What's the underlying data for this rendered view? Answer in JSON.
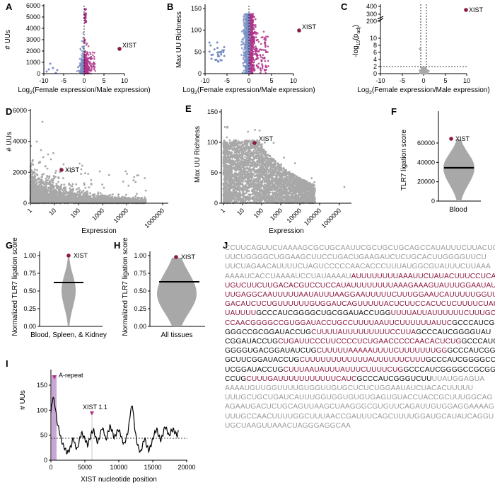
{
  "panels": {
    "A": {
      "letter": "A",
      "ylabel": "# UUs",
      "xlabel_pre": "Log",
      "xlabel_sub": "2",
      "xlabel_post": "(Female expression/Male expression)",
      "yticks": [
        "0",
        "1000",
        "2000",
        "3000",
        "4000",
        "5000",
        "6000"
      ],
      "xticks": [
        "-10",
        "-5",
        "0",
        "5",
        "10"
      ],
      "point_label": "XIST"
    },
    "B": {
      "letter": "B",
      "ylabel": "Max UU Richness",
      "xlabel_pre": "Log",
      "xlabel_sub": "2",
      "xlabel_post": "(Female expression/Male expression)",
      "yticks": [
        "0",
        "50",
        "100",
        "150"
      ],
      "xticks": [
        "-10",
        "-5",
        "0",
        "5",
        "10"
      ],
      "point_label": "XIST"
    },
    "C": {
      "letter": "C",
      "ylabel_pre": "-log",
      "ylabel_sub": "10",
      "ylabel_post": "(p",
      "ylabel_sub2": "adj",
      "ylabel_end": ")",
      "xlabel_pre": "Log",
      "xlabel_sub": "2",
      "xlabel_post": "(Female expression/Male expression)",
      "yticks": [
        "0",
        "2",
        "4",
        "6",
        "8",
        "10",
        "200",
        "300",
        "400"
      ],
      "xticks": [
        "-10",
        "-5",
        "0",
        "5",
        "10"
      ],
      "point_label": "XIST"
    },
    "D": {
      "letter": "D",
      "ylabel": "# UUs",
      "xlabel": "Expression",
      "yticks": [
        "0",
        "2000",
        "4000",
        "6000"
      ],
      "xticks": [
        "1",
        "10",
        "100",
        "1000",
        "10000",
        "1000000"
      ],
      "point_label": "XIST"
    },
    "E": {
      "letter": "E",
      "ylabel": "Max UU Richness",
      "xlabel": "Expression",
      "yticks": [
        "0",
        "50",
        "100",
        "150"
      ],
      "xticks": [
        "1",
        "10",
        "100",
        "1000",
        "10000",
        "100000",
        "1000000"
      ],
      "point_label": "XIST"
    },
    "F": {
      "letter": "F",
      "ylabel": "TLR7 ligation score",
      "xlabel": "Blood",
      "yticks": [
        "0",
        "20000",
        "40000",
        "60000"
      ],
      "point_label": "XIST"
    },
    "G": {
      "letter": "G",
      "ylabel": "Normalized TLR7 ligation score",
      "xlabel": "Blood, Spleen, & Kidney",
      "yticks": [
        "0.00",
        "0.25",
        "0.50",
        "0.75",
        "1.00"
      ],
      "point_label": "XIST"
    },
    "H": {
      "letter": "H",
      "ylabel": "Normalized TLR7 ligation score",
      "xlabel": "All tissues",
      "yticks": [
        "0.00",
        "0.25",
        "0.50",
        "0.75",
        "1.00"
      ],
      "point_label": "XIST"
    },
    "I": {
      "letter": "I",
      "ylabel": "# UUs",
      "xlabel": "XIST nucleotide position",
      "yticks": [
        "0",
        "50",
        "100",
        "150"
      ],
      "xticks": [
        "0",
        "5000",
        "10000",
        "15000",
        "20000"
      ],
      "annot1": "A-repeat",
      "annot2": "XIST 1.1"
    },
    "J": {
      "letter": "J"
    }
  },
  "colors": {
    "female": "#b0338a",
    "male": "#7a8fc4",
    "xist": "#8b1a3c",
    "gray": "#a8a8a8",
    "purple_fill": "#c9a6d6"
  },
  "chart_data": [
    {
      "panel": "A",
      "type": "scatter",
      "xlabel": "Log2(Female expression/Male expression)",
      "ylabel": "# UUs",
      "xlim": [
        -10,
        10
      ],
      "ylim": [
        0,
        6000
      ],
      "labeled_points": [
        {
          "label": "XIST",
          "x": 8.8,
          "y": 2150
        }
      ]
    },
    {
      "panel": "B",
      "type": "scatter",
      "xlabel": "Log2(Female expression/Male expression)",
      "ylabel": "Max UU Richness",
      "xlim": [
        -10,
        10
      ],
      "ylim": [
        0,
        150
      ],
      "labeled_points": [
        {
          "label": "XIST",
          "x": 8.8,
          "y": 128
        }
      ]
    },
    {
      "panel": "C",
      "type": "scatter",
      "xlabel": "Log2(Female expression/Male expression)",
      "ylabel": "-log10(padj)",
      "xlim": [
        -10,
        10
      ],
      "ylim": [
        0,
        400
      ],
      "labeled_points": [
        {
          "label": "XIST",
          "x": 8.8,
          "y": 330
        }
      ]
    },
    {
      "panel": "D",
      "type": "scatter",
      "xlabel": "Expression",
      "ylabel": "# UUs",
      "xscale": "log",
      "ylim": [
        0,
        6000
      ],
      "labeled_points": [
        {
          "label": "XIST",
          "x": 25,
          "y": 2150
        }
      ]
    },
    {
      "panel": "E",
      "type": "scatter",
      "xlabel": "Expression",
      "ylabel": "Max UU Richness",
      "xscale": "log",
      "ylim": [
        0,
        150
      ],
      "labeled_points": [
        {
          "label": "XIST",
          "x": 25,
          "y": 128
        }
      ]
    },
    {
      "panel": "F",
      "type": "violin",
      "ylabel": "TLR7 ligation score",
      "categories": [
        "Blood"
      ],
      "ylim": [
        0,
        60000
      ],
      "median": 30500,
      "labeled_points": [
        {
          "label": "XIST",
          "y": 56500
        }
      ]
    },
    {
      "panel": "G",
      "type": "violin",
      "ylabel": "Normalized TLR7 ligation score",
      "categories": [
        "Blood, Spleen, & Kidney"
      ],
      "ylim": [
        0,
        1
      ],
      "median": 0.45,
      "labeled_points": [
        {
          "label": "XIST",
          "y": 1.0
        }
      ]
    },
    {
      "panel": "H",
      "type": "violin",
      "ylabel": "Normalized TLR7 ligation score",
      "categories": [
        "All tissues"
      ],
      "ylim": [
        0,
        1
      ],
      "median": 0.46,
      "labeled_points": [
        {
          "label": "XIST",
          "y": 1.0
        }
      ]
    },
    {
      "panel": "I",
      "type": "line",
      "xlabel": "XIST nucleotide position",
      "ylabel": "# UUs",
      "xlim": [
        0,
        20000
      ],
      "ylim": [
        0,
        150
      ],
      "threshold": 35,
      "x": [
        0,
        300,
        600,
        900,
        1200,
        1500,
        1800,
        2100,
        2400,
        2700,
        3000,
        3300,
        3600,
        3900,
        4200,
        4500,
        4800,
        5100,
        5400,
        5700,
        6000,
        6300,
        6600,
        6900,
        7200,
        7500,
        7800,
        8100,
        8400,
        8700,
        9000,
        9300,
        9600,
        9900,
        10200,
        10500,
        10800,
        11100,
        11400,
        11700,
        12000,
        12300,
        12600,
        12900,
        13200,
        13500,
        13800,
        14100,
        14400,
        14700,
        15000,
        15300,
        15600,
        15900,
        16200,
        16500,
        16800,
        17100,
        17400,
        17700,
        18000,
        18300,
        18600,
        18900
      ],
      "y": [
        95,
        128,
        110,
        78,
        60,
        42,
        30,
        22,
        15,
        20,
        30,
        45,
        28,
        22,
        40,
        55,
        48,
        40,
        30,
        42,
        55,
        60,
        45,
        35,
        48,
        65,
        58,
        40,
        55,
        68,
        60,
        45,
        52,
        62,
        55,
        40,
        32,
        45,
        60,
        95,
        112,
        70,
        40,
        25,
        15,
        30,
        45,
        30,
        20,
        28,
        42,
        55,
        62,
        48,
        40,
        52,
        68,
        60,
        48,
        58,
        62,
        55,
        50,
        60
      ]
    }
  ],
  "sequence": [
    [
      [
        "g",
        "CCUUCAGUUCUAAAAGCGCUGCAAUUCGCUGCUGCAGCCAUAUUUCUUACUC"
      ]
    ],
    [
      [
        "g",
        "UUCUGGGGCUGGAAGCUUCCUGACUGAAGAUCUCUGCACUUGGGGUUCU"
      ]
    ],
    [
      [
        "g",
        "UUCUAGAACAUUUUCUAGUCCCCCAACACCCUUUAUGGCGUAUUUCUUAAA"
      ]
    ],
    [
      [
        "g",
        "AAAAUCACCUAAAAUCCUAUAAAAU"
      ],
      [
        "r",
        "AUUUUUUUUAAAUUCUAUACUUUCCUCAG"
      ]
    ],
    [
      [
        "r",
        "UGUCUUCUUGACACGUCCUCCAUAUUUUUUUUAAAGAAAGUAUUUGGAAUAUU"
      ]
    ],
    [
      [
        "r",
        "UUGAGGCAAUUUUUAAUAUUUAAGGAAUUUUUCUUUGGAAUCAUUUUUGGUU"
      ]
    ],
    [
      [
        "r",
        "GACAUCUCUGUUUUUUGUGGAUCAGUUUUUACUCUUCCACUCUCUUUUCUAU"
      ]
    ],
    [
      [
        "r",
        "UAUUUU"
      ],
      [
        "b",
        "GCCCAUCGGGGCUGCGGAUACCUGG"
      ],
      [
        "r",
        "UUUUAUUAUUUUUUCUUUGC"
      ]
    ],
    [
      [
        "r",
        "CCAACGGGGCCGUGGAUACCUGCCUUUUAAUUCUUUUUUAUUC"
      ],
      [
        "b",
        "GCCCAUCG"
      ]
    ],
    [
      [
        "b",
        "GGGCCGCGGAUACCUG"
      ],
      [
        "r",
        "CUUUUAUUUUUUUUUCCUUA"
      ],
      [
        "b",
        "GCCCAUCGGGGUAU"
      ]
    ],
    [
      [
        "b",
        "CGGAUACCUG"
      ],
      [
        "r",
        "CUGAUUCCCUUCCCCUCUGAACCCCCAACACUCUG"
      ],
      [
        "b",
        "GCCCAUC"
      ]
    ],
    [
      [
        "b",
        "GGGGUGACGGAUAUCUG"
      ],
      [
        "r",
        "CUUUUUAAAAAUUUUCUUUUUUUGG"
      ],
      [
        "b",
        "GCCCAUCGG"
      ]
    ],
    [
      [
        "b",
        "GCUUCGGAUACCUG"
      ],
      [
        "r",
        "CUUUUUUUUUUUUAUUUUUUCUUU"
      ],
      [
        "b",
        "GCCCAUCGGGGCC"
      ]
    ],
    [
      [
        "b",
        "UCGGAUACCUG"
      ],
      [
        "r",
        "CUUUAAUAUUUAUUUCUUUUCUG"
      ],
      [
        "b",
        "GCCCAUCGGGGCCGCGGAUA"
      ]
    ],
    [
      [
        "b",
        "CCUG"
      ],
      [
        "r",
        "CUUUGAUUUUUUUUUUUCAUC"
      ],
      [
        "b",
        "GCCCAUCGGGUCUU"
      ],
      [
        "g",
        "UUAUGGAGUA"
      ]
    ],
    [
      [
        "g",
        "AAAAUGUUGGUUUUGUGGUUGUGCUCUCUGGAAUAUCUACACUUUUU"
      ]
    ],
    [
      [
        "g",
        "UUUGCUGCUGAUCAUUUGGUGGUGUGUGAGUGUACCUACCGCUUUGGCAG"
      ]
    ],
    [
      [
        "g",
        "AGAAUGACUCUGCAGUUAAGCUAAGGGCGUGUUCAGAUUGUGGAGGAAAAG"
      ]
    ],
    [
      [
        "g",
        "UUUGCCAACUUUUGGCUUUAACCGAUUUCAGCUUUUGGAUGCAUAUCAGGU"
      ]
    ],
    [
      [
        "g",
        "UGCUAAGUUAAACUAGGGAGGCAA"
      ]
    ]
  ]
}
